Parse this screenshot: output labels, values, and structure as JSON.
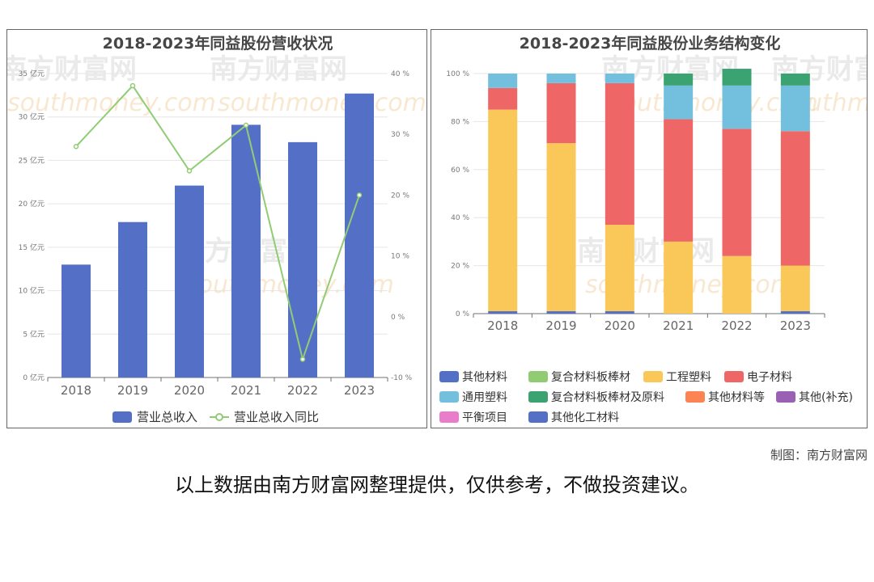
{
  "watermark": {
    "cn": "南方财富网",
    "en": "southmoney.com"
  },
  "caption": "制图：南方财富网",
  "disclaimer": "以上数据由南方财富网整理提供，仅供参考，不做投资建议。",
  "colors": {
    "bar_blue": "#5470c6",
    "line_green": "#91cc75",
    "yellow": "#fac858",
    "red": "#ee6666",
    "lightblue": "#73c0de",
    "darkgreen": "#3ba272",
    "orange": "#fc8452",
    "purple": "#9a60b4",
    "pink": "#ea7ccc"
  },
  "chart_data": [
    {
      "type": "bar",
      "title": "2018-2023年同益股份营收状况",
      "categories": [
        "2018",
        "2019",
        "2020",
        "2021",
        "2022",
        "2023"
      ],
      "y_left": {
        "ticks": [
          "0 亿元",
          "5 亿元",
          "10 亿元",
          "15 亿元",
          "20 亿元",
          "25 亿元",
          "30 亿元",
          "35 亿元"
        ],
        "min": 0,
        "max": 35
      },
      "y_right": {
        "ticks": [
          "-10 %",
          "0 %",
          "10 %",
          "20 %",
          "30 %",
          "40 %"
        ],
        "min": -10,
        "max": 40
      },
      "series": [
        {
          "name": "营业总收入",
          "type": "bar",
          "axis": "left",
          "color": "#5470c6",
          "values": [
            13.0,
            17.9,
            22.1,
            29.1,
            27.1,
            32.7
          ]
        },
        {
          "name": "营业总收入同比",
          "type": "line",
          "axis": "right",
          "color": "#91cc75",
          "values": [
            28.0,
            38.0,
            24.0,
            31.5,
            -7.0,
            20.0
          ]
        }
      ],
      "legend_position": "bottom",
      "grid": true
    },
    {
      "type": "bar",
      "stacked": true,
      "title": "2018-2023年同益股份业务结构变化",
      "categories": [
        "2018",
        "2019",
        "2020",
        "2021",
        "2022",
        "2023"
      ],
      "y_ticks": [
        "0 %",
        "20 %",
        "40 %",
        "60 %",
        "80 %",
        "100 %"
      ],
      "ylim": [
        0,
        100
      ],
      "series": [
        {
          "name": "其他材料",
          "color": "#5470c6",
          "values": [
            1.0,
            0.0,
            0.0,
            0.0,
            0.0,
            0.0
          ]
        },
        {
          "name": "复合材料板棒材",
          "color": "#91cc75",
          "values": [
            0.0,
            0.0,
            0.0,
            0.0,
            0.0,
            0.0
          ]
        },
        {
          "name": "工程塑料",
          "color": "#fac858",
          "values": [
            84.0,
            70.0,
            36.0,
            30.0,
            24.0,
            19.0
          ]
        },
        {
          "name": "电子材料",
          "color": "#ee6666",
          "values": [
            9.0,
            25.0,
            59.0,
            51.0,
            53.0,
            56.0
          ]
        },
        {
          "name": "通用塑料",
          "color": "#73c0de",
          "values": [
            6.0,
            4.0,
            4.0,
            14.0,
            18.0,
            19.0
          ]
        },
        {
          "name": "复合材料板棒材及原料",
          "color": "#3ba272",
          "values": [
            0.0,
            0.0,
            0.0,
            5.0,
            7.0,
            5.0
          ]
        },
        {
          "name": "其他材料等",
          "color": "#fc8452",
          "values": [
            0.0,
            0.0,
            0.0,
            0.0,
            0.0,
            0.0
          ]
        },
        {
          "name": "其他(补充)",
          "color": "#9a60b4",
          "values": [
            0.0,
            0.0,
            0.0,
            0.0,
            0.0,
            0.0
          ]
        },
        {
          "name": "平衡项目",
          "color": "#ea7ccc",
          "values": [
            0.0,
            0.0,
            0.0,
            0.0,
            0.0,
            0.0
          ]
        },
        {
          "name": "其他化工材料",
          "color": "#5470c6",
          "values": [
            0.0,
            1.0,
            1.0,
            0.0,
            0.0,
            1.0
          ]
        }
      ],
      "legend_position": "bottom",
      "grid": true
    }
  ]
}
